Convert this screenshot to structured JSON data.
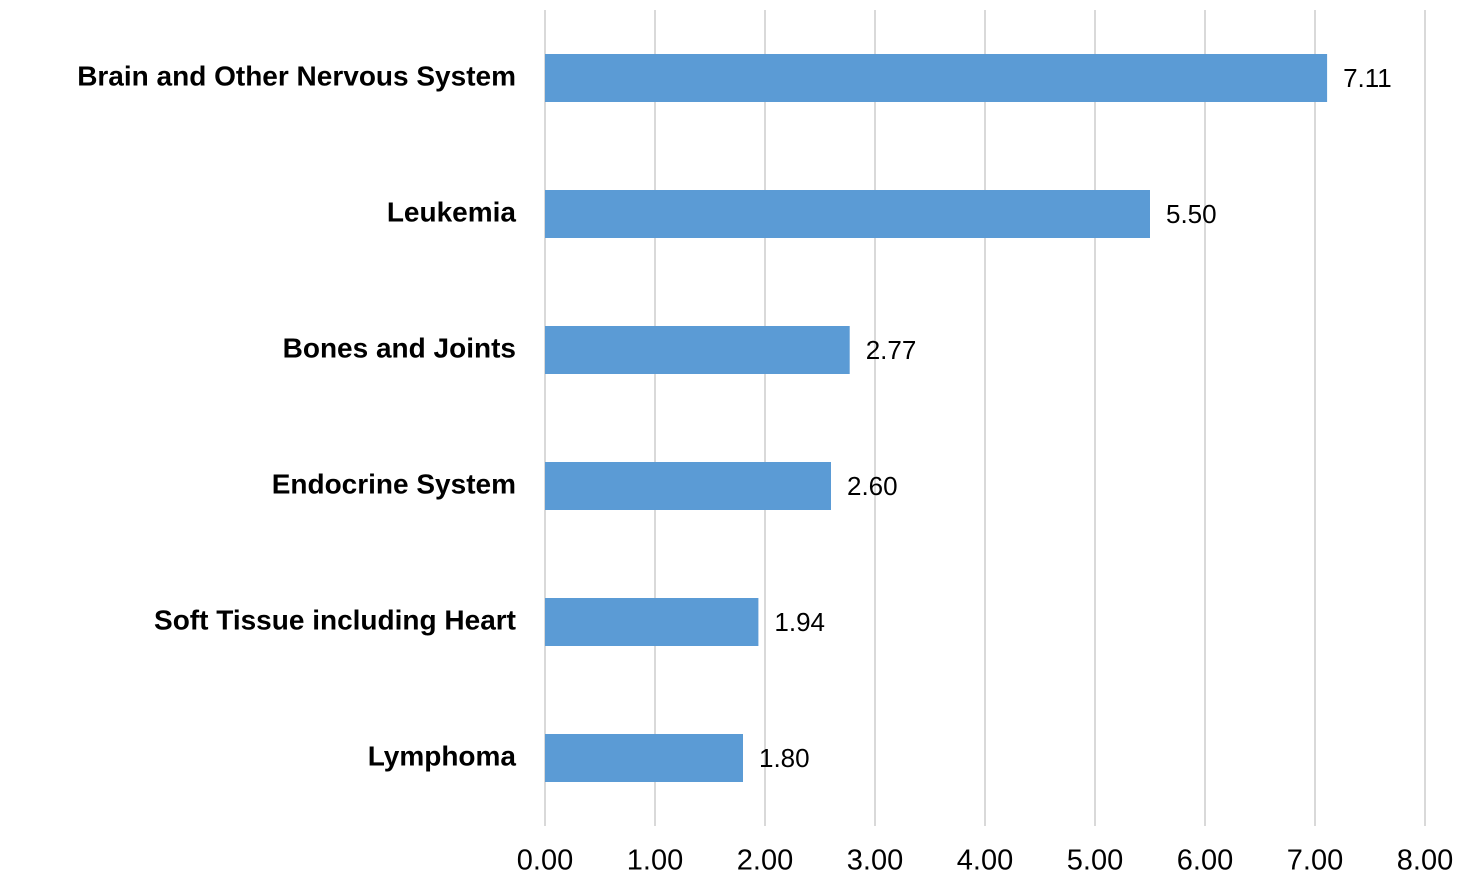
{
  "chart_data": {
    "type": "bar",
    "orientation": "horizontal",
    "categories": [
      "Brain and Other Nervous System",
      "Leukemia",
      "Bones and Joints",
      "Endocrine System",
      "Soft Tissue including Heart",
      "Lymphoma"
    ],
    "values": [
      7.11,
      5.5,
      2.77,
      2.6,
      1.94,
      1.8
    ],
    "value_labels": [
      "7.11",
      "5.50",
      "2.77",
      "2.60",
      "1.94",
      "1.80"
    ],
    "color": "#5b9bd5",
    "xlim": [
      0,
      8
    ],
    "xticks": [
      {
        "value": 0,
        "label": "0.00"
      },
      {
        "value": 1,
        "label": "1.00"
      },
      {
        "value": 2,
        "label": "2.00"
      },
      {
        "value": 3,
        "label": "3.00"
      },
      {
        "value": 4,
        "label": "4.00"
      },
      {
        "value": 5,
        "label": "5.00"
      },
      {
        "value": 6,
        "label": "6.00"
      },
      {
        "value": 7,
        "label": "7.00"
      },
      {
        "value": 8,
        "label": "8.00"
      }
    ],
    "grid": true
  }
}
